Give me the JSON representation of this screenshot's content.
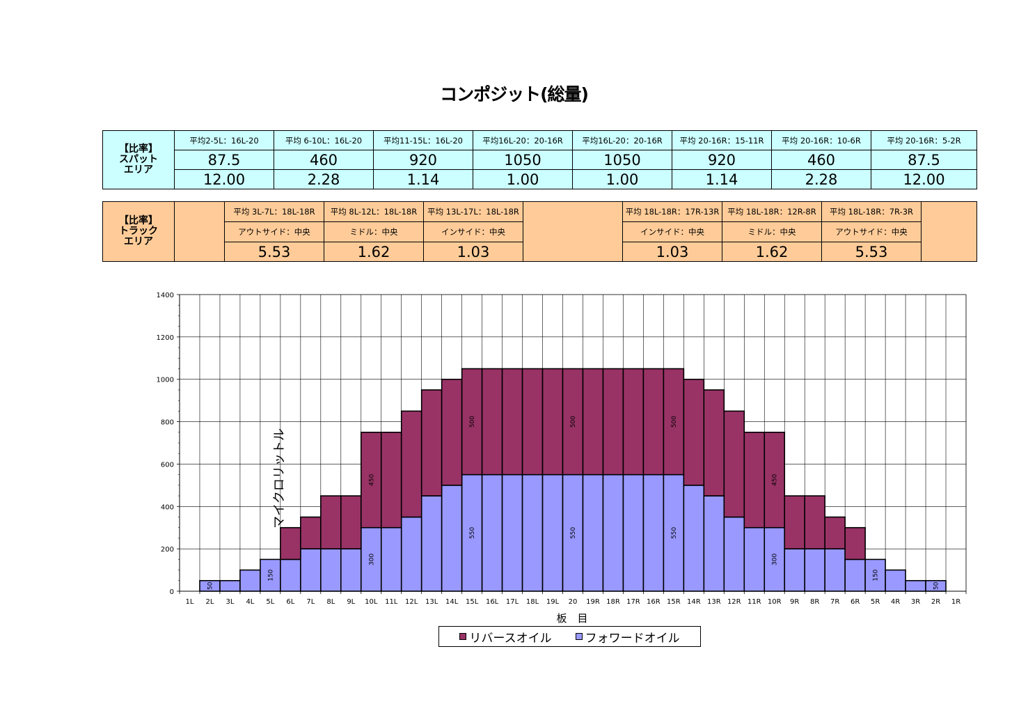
{
  "title": "コンポジット(総量)",
  "spot": {
    "label": "【比率】\nスパット\nエリア",
    "headers": [
      "平均2-5L：16L-20",
      "平均 6-10L：16L-20",
      "平均11-15L：16L-20",
      "平均16L-20：20-16R",
      "平均16L-20：20-16R",
      "平均 20-16R：15-11R",
      "平均 20-16R：10-6R",
      "平均 20-16R：5-2R"
    ],
    "values": [
      "87.5",
      "460",
      "920",
      "1050",
      "1050",
      "920",
      "460",
      "87.5"
    ],
    "ratios": [
      "12.00",
      "2.28",
      "1.14",
      "1.00",
      "1.00",
      "1.14",
      "2.28",
      "12.00"
    ]
  },
  "track": {
    "label": "【比率】\nトラック\nエリア",
    "left": {
      "headers": [
        "平均 3L-7L：18L-18R",
        "平均 8L-12L：18L-18R",
        "平均 13L-17L：18L-18R"
      ],
      "zones": [
        "アウトサイド：中央",
        "ミドル：中央",
        "インサイド：中央"
      ],
      "ratios": [
        "5.53",
        "1.62",
        "1.03"
      ]
    },
    "right": {
      "headers": [
        "平均 18L-18R：17R-13R",
        "平均 18L-18R：12R-8R",
        "平均 18L-18R：7R-3R"
      ],
      "zones": [
        "インサイド：中央",
        "ミドル：中央",
        "アウトサイド：中央"
      ],
      "ratios": [
        "1.03",
        "1.62",
        "5.53"
      ]
    }
  },
  "chart_data": {
    "type": "bar",
    "stacked": true,
    "xlabel": "板　目",
    "ylabel": "マイクロリットル",
    "ylim": [
      0,
      1400
    ],
    "yticks": [
      0,
      200,
      400,
      600,
      800,
      1000,
      1200,
      1400
    ],
    "grid": true,
    "legend_position": "bottom",
    "categories": [
      "1L",
      "2L",
      "3L",
      "4L",
      "5L",
      "6L",
      "7L",
      "8L",
      "9L",
      "10L",
      "11L",
      "12L",
      "13L",
      "14L",
      "15L",
      "16L",
      "17L",
      "18L",
      "19L",
      "20",
      "19R",
      "18R",
      "17R",
      "16R",
      "15R",
      "14R",
      "13R",
      "12R",
      "11R",
      "10R",
      "9R",
      "8R",
      "7R",
      "6R",
      "5R",
      "4R",
      "3R",
      "2R",
      "1R"
    ],
    "series": [
      {
        "name": "フォワードオイル",
        "color": "#9999ff",
        "values": [
          0,
          50,
          50,
          100,
          150,
          150,
          200,
          200,
          200,
          300,
          300,
          350,
          450,
          500,
          550,
          550,
          550,
          550,
          550,
          550,
          550,
          550,
          550,
          550,
          550,
          500,
          450,
          350,
          300,
          300,
          200,
          200,
          200,
          150,
          150,
          100,
          50,
          50,
          0
        ]
      },
      {
        "name": "リバースオイル",
        "color": "#993366",
        "values": [
          0,
          0,
          0,
          0,
          0,
          150,
          150,
          250,
          250,
          450,
          450,
          500,
          500,
          500,
          500,
          500,
          500,
          500,
          500,
          500,
          500,
          500,
          500,
          500,
          500,
          500,
          500,
          500,
          450,
          450,
          250,
          250,
          150,
          150,
          0,
          0,
          0,
          0,
          0
        ]
      }
    ],
    "data_labels": [
      {
        "category": "2L",
        "series": "フォワードオイル",
        "text": "50"
      },
      {
        "category": "5L",
        "series": "フォワードオイル",
        "text": "150"
      },
      {
        "category": "10L",
        "series": "フォワードオイル",
        "text": "300"
      },
      {
        "category": "10L",
        "series": "リバースオイル",
        "text": "450"
      },
      {
        "category": "15L",
        "series": "フォワードオイル",
        "text": "550"
      },
      {
        "category": "15L",
        "series": "リバースオイル",
        "text": "500"
      },
      {
        "category": "20",
        "series": "フォワードオイル",
        "text": "550"
      },
      {
        "category": "20",
        "series": "リバースオイル",
        "text": "500"
      },
      {
        "category": "15R",
        "series": "フォワードオイル",
        "text": "550"
      },
      {
        "category": "15R",
        "series": "リバースオイル",
        "text": "500"
      },
      {
        "category": "10R",
        "series": "フォワードオイル",
        "text": "300"
      },
      {
        "category": "10R",
        "series": "リバースオイル",
        "text": "450"
      },
      {
        "category": "5R",
        "series": "フォワードオイル",
        "text": "150"
      },
      {
        "category": "2R",
        "series": "フォワードオイル",
        "text": "50"
      }
    ]
  }
}
